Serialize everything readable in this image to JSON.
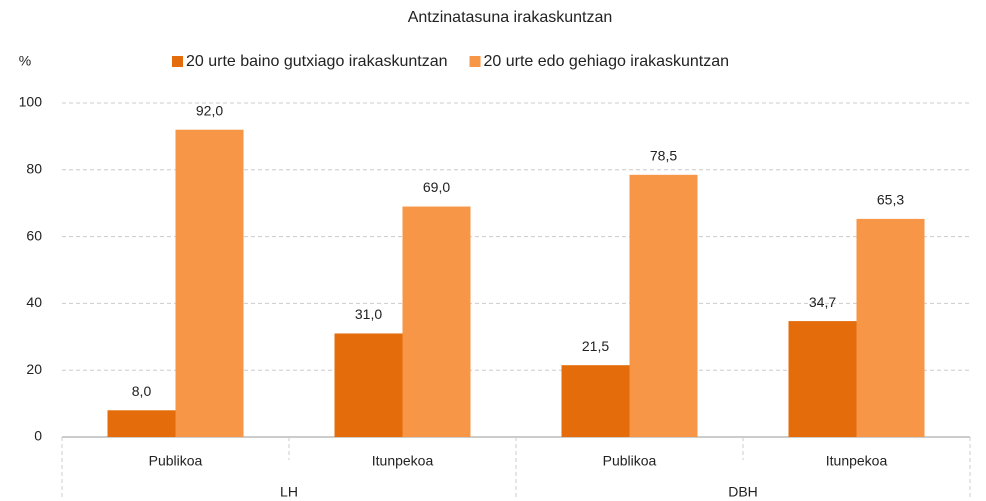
{
  "chart_data": {
    "type": "bar",
    "title": "Antzinatasuna irakaskuntzan",
    "y_label": "%",
    "categories": [
      "Publikoa",
      "Itunpekoa",
      "Publikoa",
      "Itunpekoa"
    ],
    "groups": [
      "LH",
      "DBH"
    ],
    "series": [
      {
        "name": "20 urte baino gutxiago irakaskuntzan",
        "color": "#e46c0a",
        "values": [
          8.0,
          31.0,
          21.5,
          34.7
        ],
        "value_labels": [
          "8,0",
          "31,0",
          "21,5",
          "34,7"
        ]
      },
      {
        "name": "20 urte edo gehiago irakaskuntzan",
        "color": "#f79646",
        "values": [
          92.0,
          69.0,
          78.5,
          65.3
        ],
        "value_labels": [
          "92,0",
          "69,0",
          "78,5",
          "65,3"
        ]
      }
    ],
    "ylim": [
      0,
      100
    ],
    "yticks": [
      0,
      20,
      40,
      60,
      80,
      100
    ],
    "grid": true
  }
}
